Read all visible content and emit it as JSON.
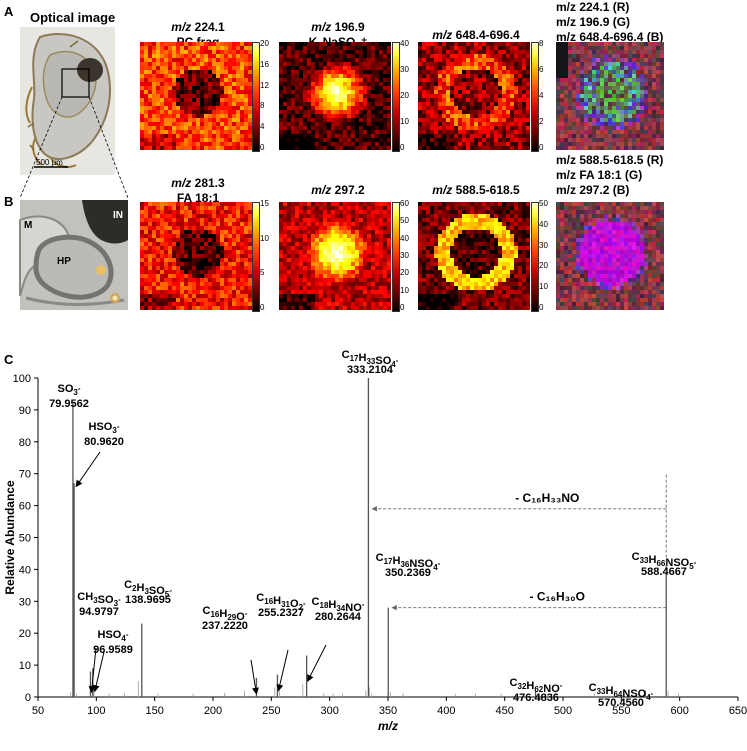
{
  "panels": {
    "a_letter": "A",
    "b_letter": "B",
    "c_letter": "C"
  },
  "row_a": {
    "optical_title": "Optical image",
    "scale_bar": "500 µm",
    "maps": [
      {
        "mz_prefix": "m/z",
        "mz": "224.1",
        "sub": "PC frag",
        "cbar_ticks": [
          "20",
          "16",
          "12",
          "8",
          "4",
          "0"
        ],
        "theme": "red"
      },
      {
        "mz_prefix": "m/z",
        "mz": "196.9",
        "sub": "K₂NaSO₄⁺",
        "cbar_ticks": [
          "40",
          "30",
          "20",
          "10",
          "0"
        ],
        "theme": "red"
      },
      {
        "mz_prefix": "m/z",
        "mz": "648.4-696.4",
        "sub": "",
        "cbar_ticks": [
          "8",
          "6",
          "4",
          "2",
          "0"
        ],
        "theme": "red"
      }
    ],
    "overlay_lines": [
      "m/z 224.1 (R)",
      "m/z 196.9 (G)",
      "m/z 648.4-696.4 (B)"
    ]
  },
  "row_b": {
    "labels": {
      "m": "M",
      "in": "IN",
      "hp": "HP"
    },
    "maps": [
      {
        "mz_prefix": "m/z",
        "mz": "281.3",
        "sub": "FA 18:1",
        "cbar_ticks": [
          "15",
          "10",
          "5",
          "0"
        ],
        "theme": "red"
      },
      {
        "mz_prefix": "m/z",
        "mz": "297.2",
        "sub": "",
        "cbar_ticks": [
          "60",
          "50",
          "40",
          "30",
          "20",
          "10",
          "0"
        ],
        "theme": "red"
      },
      {
        "mz_prefix": "m/z",
        "mz": "588.5-618.5",
        "sub": "",
        "cbar_ticks": [
          "50",
          "40",
          "30",
          "20",
          "10",
          "0"
        ],
        "theme": "red"
      }
    ],
    "overlay_lines": [
      "m/z 588.5-618.5 (R)",
      "m/z FA 18:1 (G)",
      "m/z 297.2 (B)"
    ]
  },
  "chart_data": {
    "type": "bar",
    "xlabel": "m/z",
    "ylabel": "Relative Abundance",
    "xlim": [
      50,
      650
    ],
    "ylim": [
      0,
      100
    ],
    "x_ticks": [
      50,
      100,
      150,
      200,
      250,
      300,
      350,
      400,
      450,
      500,
      550,
      600,
      650
    ],
    "y_ticks": [
      0,
      10,
      20,
      30,
      40,
      50,
      60,
      70,
      80,
      90,
      100
    ],
    "peaks": [
      {
        "mz": 79.9562,
        "abundance": 92,
        "formula": "SO3-",
        "label_mz": "79.9562"
      },
      {
        "mz": 80.962,
        "abundance": 67,
        "formula": "HSO3-",
        "label_mz": "80.9620"
      },
      {
        "mz": 94.9797,
        "abundance": 8,
        "formula": "CH3SO3-",
        "label_mz": "94.9797"
      },
      {
        "mz": 96.9589,
        "abundance": 9,
        "formula": "HSO4-",
        "label_mz": "96.9589"
      },
      {
        "mz": 138.9695,
        "abundance": 23,
        "formula": "C2H3SO5-",
        "label_mz": "138.9695"
      },
      {
        "mz": 237.222,
        "abundance": 6,
        "formula": "C16H29O-",
        "label_mz": "237.2220"
      },
      {
        "mz": 255.2327,
        "abundance": 7,
        "formula": "C16H31O2-",
        "label_mz": "255.2327"
      },
      {
        "mz": 280.2644,
        "abundance": 13,
        "formula": "C18H34NO-",
        "label_mz": "280.2644"
      },
      {
        "mz": 333.2104,
        "abundance": 100,
        "formula": "C17H33SO4-",
        "label_mz": "333.2104"
      },
      {
        "mz": 350.2369,
        "abundance": 28,
        "formula": "C17H36NSO4-",
        "label_mz": "350.2369"
      },
      {
        "mz": 476.4836,
        "abundance": 2,
        "formula": "C32H62NO-",
        "label_mz": "476.4836"
      },
      {
        "mz": 570.456,
        "abundance": 2,
        "formula": "C33H64NSO4-",
        "label_mz": "570.4560"
      },
      {
        "mz": 588.4667,
        "abundance": 41,
        "formula": "C33H66NSO5-",
        "label_mz": "588.4667"
      }
    ],
    "minor_peaks": [
      {
        "mz": 78,
        "abundance": 1.5
      },
      {
        "mz": 83,
        "abundance": 1
      },
      {
        "mz": 97.9,
        "abundance": 3
      },
      {
        "mz": 111,
        "abundance": 1
      },
      {
        "mz": 124,
        "abundance": 1.2
      },
      {
        "mz": 136,
        "abundance": 5
      },
      {
        "mz": 153,
        "abundance": 1
      },
      {
        "mz": 183,
        "abundance": 1
      },
      {
        "mz": 210,
        "abundance": 1.3
      },
      {
        "mz": 227,
        "abundance": 2
      },
      {
        "mz": 253,
        "abundance": 3
      },
      {
        "mz": 257,
        "abundance": 2
      },
      {
        "mz": 277,
        "abundance": 4
      },
      {
        "mz": 295,
        "abundance": 1.2
      },
      {
        "mz": 303,
        "abundance": 1
      },
      {
        "mz": 311,
        "abundance": 1
      },
      {
        "mz": 331,
        "abundance": 2
      },
      {
        "mz": 334,
        "abundance": 3
      },
      {
        "mz": 336,
        "abundance": 1
      },
      {
        "mz": 352,
        "abundance": 1.5
      },
      {
        "mz": 363,
        "abundance": 1.2
      },
      {
        "mz": 408,
        "abundance": 1
      },
      {
        "mz": 425,
        "abundance": 1
      },
      {
        "mz": 447,
        "abundance": 1
      },
      {
        "mz": 494,
        "abundance": 1.5
      },
      {
        "mz": 527,
        "abundance": 1
      },
      {
        "mz": 544,
        "abundance": 1
      },
      {
        "mz": 590,
        "abundance": 2
      },
      {
        "mz": 599,
        "abundance": 1
      }
    ],
    "neutral_losses": [
      {
        "from_mz": 588.4667,
        "to_mz": 333.2104,
        "y": 59,
        "label": "- C₁₆H₃₃NO"
      },
      {
        "from_mz": 588.4667,
        "to_mz": 350.2369,
        "y": 28,
        "label": "- C₁₆H₃₀O"
      }
    ],
    "colors": {
      "bars": "#555555",
      "axis": "#000000",
      "arrow": "#666666"
    }
  }
}
